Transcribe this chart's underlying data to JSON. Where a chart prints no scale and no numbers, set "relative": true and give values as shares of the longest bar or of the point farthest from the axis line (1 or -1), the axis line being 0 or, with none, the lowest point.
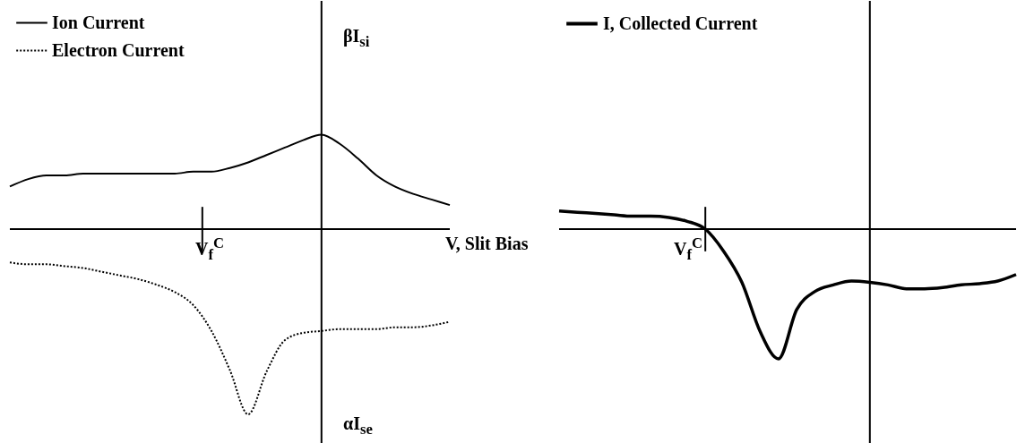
{
  "chart_data": [
    {
      "type": "line",
      "relative": true,
      "legend": "top left",
      "categories": [
        null,
        null,
        null,
        null,
        null,
        null,
        null,
        null,
        null,
        null,
        null,
        null,
        null,
        null,
        null,
        null,
        null,
        null,
        null,
        null,
        null,
        null,
        null,
        null,
        null
      ],
      "series": [
        {
          "name": "Ion Current",
          "color": "#000000",
          "line_style": "solid",
          "values": [
            0.23,
            0.27,
            0.29,
            0.29,
            0.3,
            0.3,
            0.3,
            0.3,
            0.3,
            0.3,
            0.31,
            0.31,
            0.33,
            0.36,
            0.4,
            0.44,
            0.48,
            0.51,
            0.46,
            0.38,
            0.29,
            0.23,
            0.19,
            0.16,
            0.13
          ]
        },
        {
          "name": "Electron Current",
          "color": "#000000",
          "line_style": "dotted",
          "values": [
            -0.18,
            -0.19,
            -0.19,
            -0.2,
            -0.21,
            -0.23,
            -0.25,
            -0.27,
            -0.3,
            -0.34,
            -0.41,
            -0.55,
            -0.76,
            -1,
            -0.77,
            -0.6,
            -0.56,
            -0.55,
            -0.54,
            -0.54,
            -0.54,
            -0.53,
            -0.53,
            -0.52,
            -0.5
          ]
        }
      ],
      "annotations": [
        "βI$_{si}$",
        "αI$_{se}$",
        "V$_{f}$$^{C}$",
        "V, Slit Bias"
      ]
    },
    {
      "type": "line",
      "relative": true,
      "legend": "top left",
      "categories": [
        null,
        null,
        null,
        null,
        null,
        null,
        null,
        null,
        null,
        null,
        null,
        null,
        null,
        null,
        null,
        null,
        null,
        null,
        null,
        null,
        null,
        null,
        null,
        null,
        null,
        null
      ],
      "series": [
        {
          "name": "I, Collected Current",
          "color": "#000000",
          "line_style": "solid",
          "values": [
            0.14,
            0.13,
            0.12,
            0.11,
            0.1,
            0.1,
            0.09,
            0.06,
            0,
            -0.17,
            -0.41,
            -0.79,
            -1,
            -0.62,
            -0.48,
            -0.43,
            -0.4,
            -0.41,
            -0.43,
            -0.46,
            -0.46,
            -0.45,
            -0.43,
            -0.42,
            -0.4,
            -0.35
          ]
        }
      ],
      "annotations": [
        "V$_{f}$$^{C}$"
      ]
    }
  ]
}
